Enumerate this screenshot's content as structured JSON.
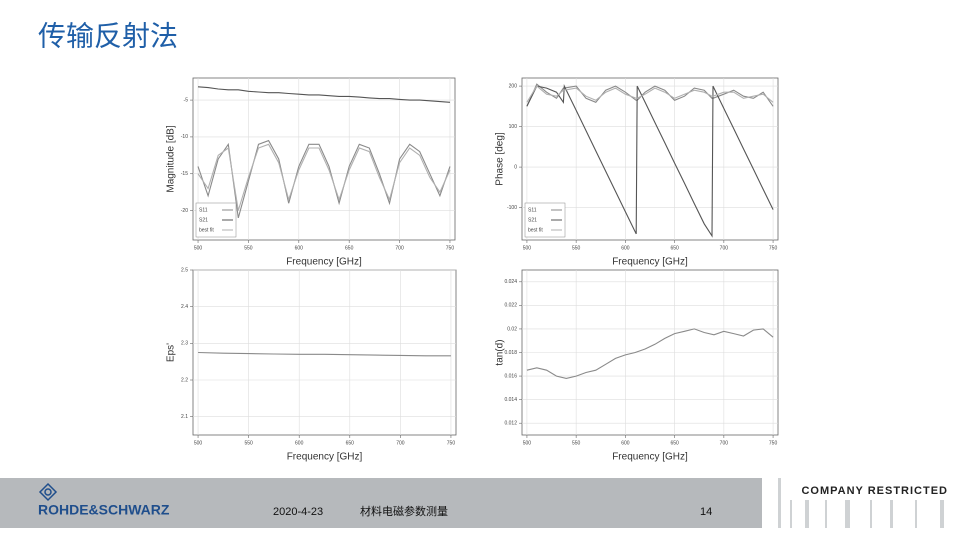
{
  "title": "传输反射法",
  "chart_data": [
    {
      "type": "line",
      "xlabel": "Frequency [GHz]",
      "ylabel": "Magnitude [dB]",
      "legend": "lower left",
      "grid": true,
      "x": [
        500,
        510,
        520,
        530,
        540,
        550,
        560,
        570,
        580,
        590,
        600,
        610,
        620,
        630,
        640,
        650,
        660,
        670,
        680,
        690,
        700,
        710,
        720,
        730,
        740,
        750
      ],
      "series": [
        {
          "name": "S11",
          "color": "#8a8a8a",
          "values": [
            -14,
            -18,
            -13,
            -11,
            -21,
            -16,
            -11,
            -10.5,
            -13,
            -19,
            -14,
            -11,
            -11,
            -14,
            -19,
            -14,
            -11,
            -11.5,
            -15,
            -19,
            -13,
            -11,
            -12,
            -15,
            -18,
            -14
          ]
        },
        {
          "name": "S21",
          "color": "#555555",
          "values": [
            -3.2,
            -3.3,
            -3.5,
            -3.6,
            -3.6,
            -3.8,
            -3.9,
            -4,
            -4,
            -4.1,
            -4.2,
            -4.3,
            -4.3,
            -4.4,
            -4.5,
            -4.5,
            -4.6,
            -4.7,
            -4.8,
            -4.8,
            -4.9,
            -5,
            -5,
            -5.1,
            -5.2,
            -5.3
          ]
        },
        {
          "name": "best fit",
          "color": "#b0b0b0",
          "values": [
            -15,
            -17,
            -12.5,
            -11.5,
            -20,
            -15.5,
            -11.5,
            -11,
            -13.5,
            -18.5,
            -14.5,
            -11.5,
            -11.5,
            -14.5,
            -18.5,
            -14.5,
            -11.5,
            -12,
            -15.5,
            -18.5,
            -13.5,
            -11.5,
            -12.5,
            -15.5,
            -17.5,
            -14.5
          ]
        }
      ],
      "xlim": [
        495,
        755
      ],
      "xticks": [
        500,
        550,
        600,
        650,
        700,
        750
      ],
      "ylim": [
        -24,
        -2
      ],
      "yticks": [
        -5,
        -10,
        -15,
        -20
      ]
    },
    {
      "type": "line",
      "xlabel": "Frequency [GHz]",
      "ylabel": "Phase [deg]",
      "legend": "lower left",
      "grid": true,
      "x": [
        500,
        510,
        520,
        530,
        537,
        538,
        550,
        560,
        570,
        580,
        590,
        600,
        611,
        612,
        620,
        630,
        640,
        650,
        660,
        670,
        680,
        688,
        689,
        700,
        710,
        720,
        730,
        740,
        750
      ],
      "series": [
        {
          "name": "S11",
          "color": "#8a8a8a",
          "values": [
            150,
            205,
            185,
            170,
            195,
            195,
            200,
            170,
            160,
            190,
            200,
            185,
            165,
            165,
            185,
            200,
            190,
            165,
            175,
            195,
            190,
            170,
            170,
            180,
            190,
            175,
            170,
            185,
            150
          ]
        },
        {
          "name": "S21",
          "color": "#555555",
          "values": [
            150,
            200,
            195,
            185,
            160,
            200,
            140,
            90,
            40,
            -10,
            -60,
            -110,
            -165,
            200,
            160,
            110,
            60,
            10,
            -40,
            -90,
            -140,
            -170,
            200,
            145,
            95,
            45,
            -5,
            -55,
            -105
          ]
        },
        {
          "name": "best fit",
          "color": "#b0b0b0",
          "values": [
            160,
            200,
            180,
            175,
            190,
            190,
            195,
            175,
            165,
            185,
            195,
            180,
            170,
            170,
            180,
            195,
            185,
            170,
            180,
            190,
            185,
            175,
            175,
            185,
            185,
            170,
            175,
            180,
            160
          ]
        }
      ],
      "xlim": [
        495,
        755
      ],
      "xticks": [
        500,
        550,
        600,
        650,
        700,
        750
      ],
      "ylim": [
        -180,
        220
      ],
      "yticks": [
        200,
        100,
        0,
        -100
      ]
    },
    {
      "type": "line",
      "xlabel": "Frequency [GHz]",
      "ylabel": "Eps'",
      "grid": true,
      "color": "#8a8a8a",
      "x": [
        500,
        525,
        550,
        575,
        600,
        625,
        650,
        675,
        700,
        725,
        750
      ],
      "values": [
        2.275,
        2.273,
        2.272,
        2.271,
        2.27,
        2.27,
        2.269,
        2.268,
        2.267,
        2.266,
        2.266
      ],
      "xlim": [
        495,
        755
      ],
      "xticks": [
        500,
        550,
        600,
        650,
        700,
        750
      ],
      "ylim": [
        2.05,
        2.5
      ],
      "yticks": [
        2.1,
        2.2,
        2.3,
        2.4,
        2.5
      ]
    },
    {
      "type": "line",
      "xlabel": "Frequency [GHz]",
      "ylabel": "tan(d)",
      "grid": true,
      "color": "#8a8a8a",
      "x": [
        500,
        510,
        520,
        530,
        540,
        550,
        560,
        570,
        580,
        590,
        600,
        610,
        620,
        630,
        640,
        650,
        660,
        670,
        680,
        690,
        700,
        710,
        720,
        730,
        740,
        750
      ],
      "values": [
        0.0165,
        0.0167,
        0.0165,
        0.016,
        0.0158,
        0.016,
        0.0163,
        0.0165,
        0.017,
        0.0175,
        0.0178,
        0.018,
        0.0183,
        0.0187,
        0.0192,
        0.0196,
        0.0198,
        0.02,
        0.0197,
        0.0195,
        0.0198,
        0.0196,
        0.0194,
        0.0199,
        0.02,
        0.0193
      ],
      "xlim": [
        495,
        755
      ],
      "xticks": [
        500,
        550,
        600,
        650,
        700,
        750
      ],
      "ylim": [
        0.011,
        0.025
      ],
      "yticks": [
        0.012,
        0.014,
        0.016,
        0.018,
        0.02,
        0.022,
        0.024
      ]
    }
  ],
  "footer": {
    "brand": "ROHDE&SCHWARZ",
    "date": "2020-4-23",
    "topic": "材料电磁参数测量",
    "page": "14",
    "classification": "COMPANY RESTRICTED"
  }
}
